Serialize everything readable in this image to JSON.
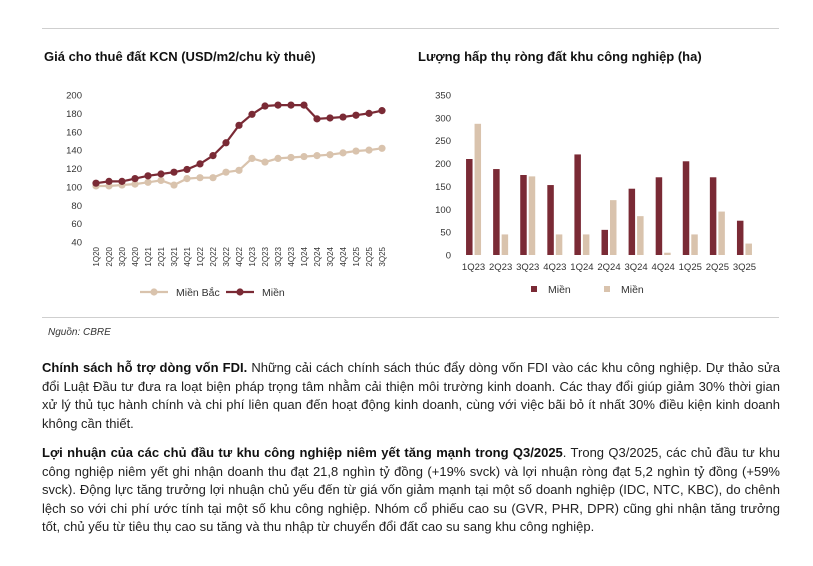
{
  "charts": {
    "left_title": "Giá cho thuê đất KCN (USD/m2/chu kỳ thuê)",
    "right_title": "Lượng hấp thụ ròng đất khu công nghiệp (ha)"
  },
  "chart_data": [
    {
      "type": "line",
      "title": "Giá cho thuê đất KCN (USD/m2/chu kỳ thuê)",
      "categories": [
        "1Q20",
        "2Q20",
        "3Q20",
        "4Q20",
        "1Q21",
        "2Q21",
        "3Q21",
        "4Q21",
        "1Q22",
        "2Q22",
        "3Q22",
        "4Q22",
        "1Q23",
        "2Q23",
        "3Q23",
        "4Q23",
        "1Q24",
        "2Q24",
        "3Q24",
        "4Q24",
        "1Q25",
        "2Q25",
        "3Q25"
      ],
      "series": [
        {
          "name": "Miền Bắc",
          "color": "#d9c3ad",
          "values": [
            101,
            101,
            102,
            103,
            105,
            107,
            102,
            109,
            110,
            110,
            116,
            118,
            131,
            127,
            131,
            132,
            133,
            134,
            135,
            137,
            139,
            140,
            142
          ]
        },
        {
          "name": "Miền",
          "color": "#7a2a35",
          "values": [
            104,
            106,
            106,
            109,
            112,
            114,
            116,
            119,
            125,
            134,
            148,
            167,
            179,
            188,
            189,
            189,
            189,
            174,
            175,
            176,
            178,
            180,
            183
          ]
        }
      ],
      "ylim": [
        40,
        200
      ],
      "yticks": [
        40,
        60,
        80,
        100,
        120,
        140,
        160,
        180,
        200
      ],
      "legend": "bottom"
    },
    {
      "type": "bar",
      "title": "Lượng hấp thụ ròng đất khu công nghiệp (ha)",
      "categories": [
        "1Q23",
        "2Q23",
        "3Q23",
        "4Q23",
        "1Q24",
        "2Q24",
        "3Q24",
        "4Q24",
        "1Q25",
        "2Q25",
        "3Q25"
      ],
      "series": [
        {
          "name": "Miền",
          "color": "#7a2a35",
          "values": [
            210,
            188,
            175,
            153,
            220,
            55,
            145,
            170,
            205,
            170,
            75
          ]
        },
        {
          "name": "Miền",
          "color": "#d9c3ad",
          "values": [
            287,
            45,
            172,
            45,
            45,
            120,
            85,
            5,
            45,
            95,
            25
          ]
        }
      ],
      "ylim": [
        0,
        350
      ],
      "yticks": [
        0,
        50,
        100,
        150,
        200,
        250,
        300,
        350
      ],
      "legend": "bottom"
    }
  ],
  "source": "Nguồn: CBRE",
  "paragraphs": [
    {
      "bold": "Chính sách hỗ trợ dòng vốn FDI.",
      "text": " Những cải cách chính sách thúc đẩy dòng vốn FDI vào các khu công nghiệp. Dự thảo sửa đổi Luật Đầu tư đưa ra loạt biện pháp trọng tâm nhằm cải thiện môi trường kinh doanh. Các thay đổi giúp giảm 30% thời gian xử lý thủ tục hành chính và chi phí liên quan đến hoạt động kinh doanh, cùng với việc bãi bỏ ít nhất 30% điều kiện kinh doanh không cần thiết."
    },
    {
      "bold": "Lợi nhuận của các chủ đầu tư khu công nghiệp niêm yết tăng mạnh trong Q3/2025",
      "text": ". Trong Q3/2025, các chủ đầu tư khu công nghiệp niêm yết ghi nhận doanh thu đạt 21,8 nghìn tỷ đồng (+19% svck) và lợi nhuận ròng đạt 5,2 nghìn tỷ đồng (+59% svck). Động lực tăng trưởng lợi nhuận chủ yếu đến từ giá vốn giảm mạnh tại một số doanh nghiệp (IDC, NTC, KBC), do chênh lệch so với chi phí ước tính tại một số khu công nghiệp. Nhóm cổ phiếu cao su (GVR, PHR, DPR) cũng ghi nhận tăng trưởng tốt, chủ yếu từ tiêu thụ cao su tăng và thu nhập từ chuyển đổi đất cao su sang khu công nghiệp."
    }
  ]
}
